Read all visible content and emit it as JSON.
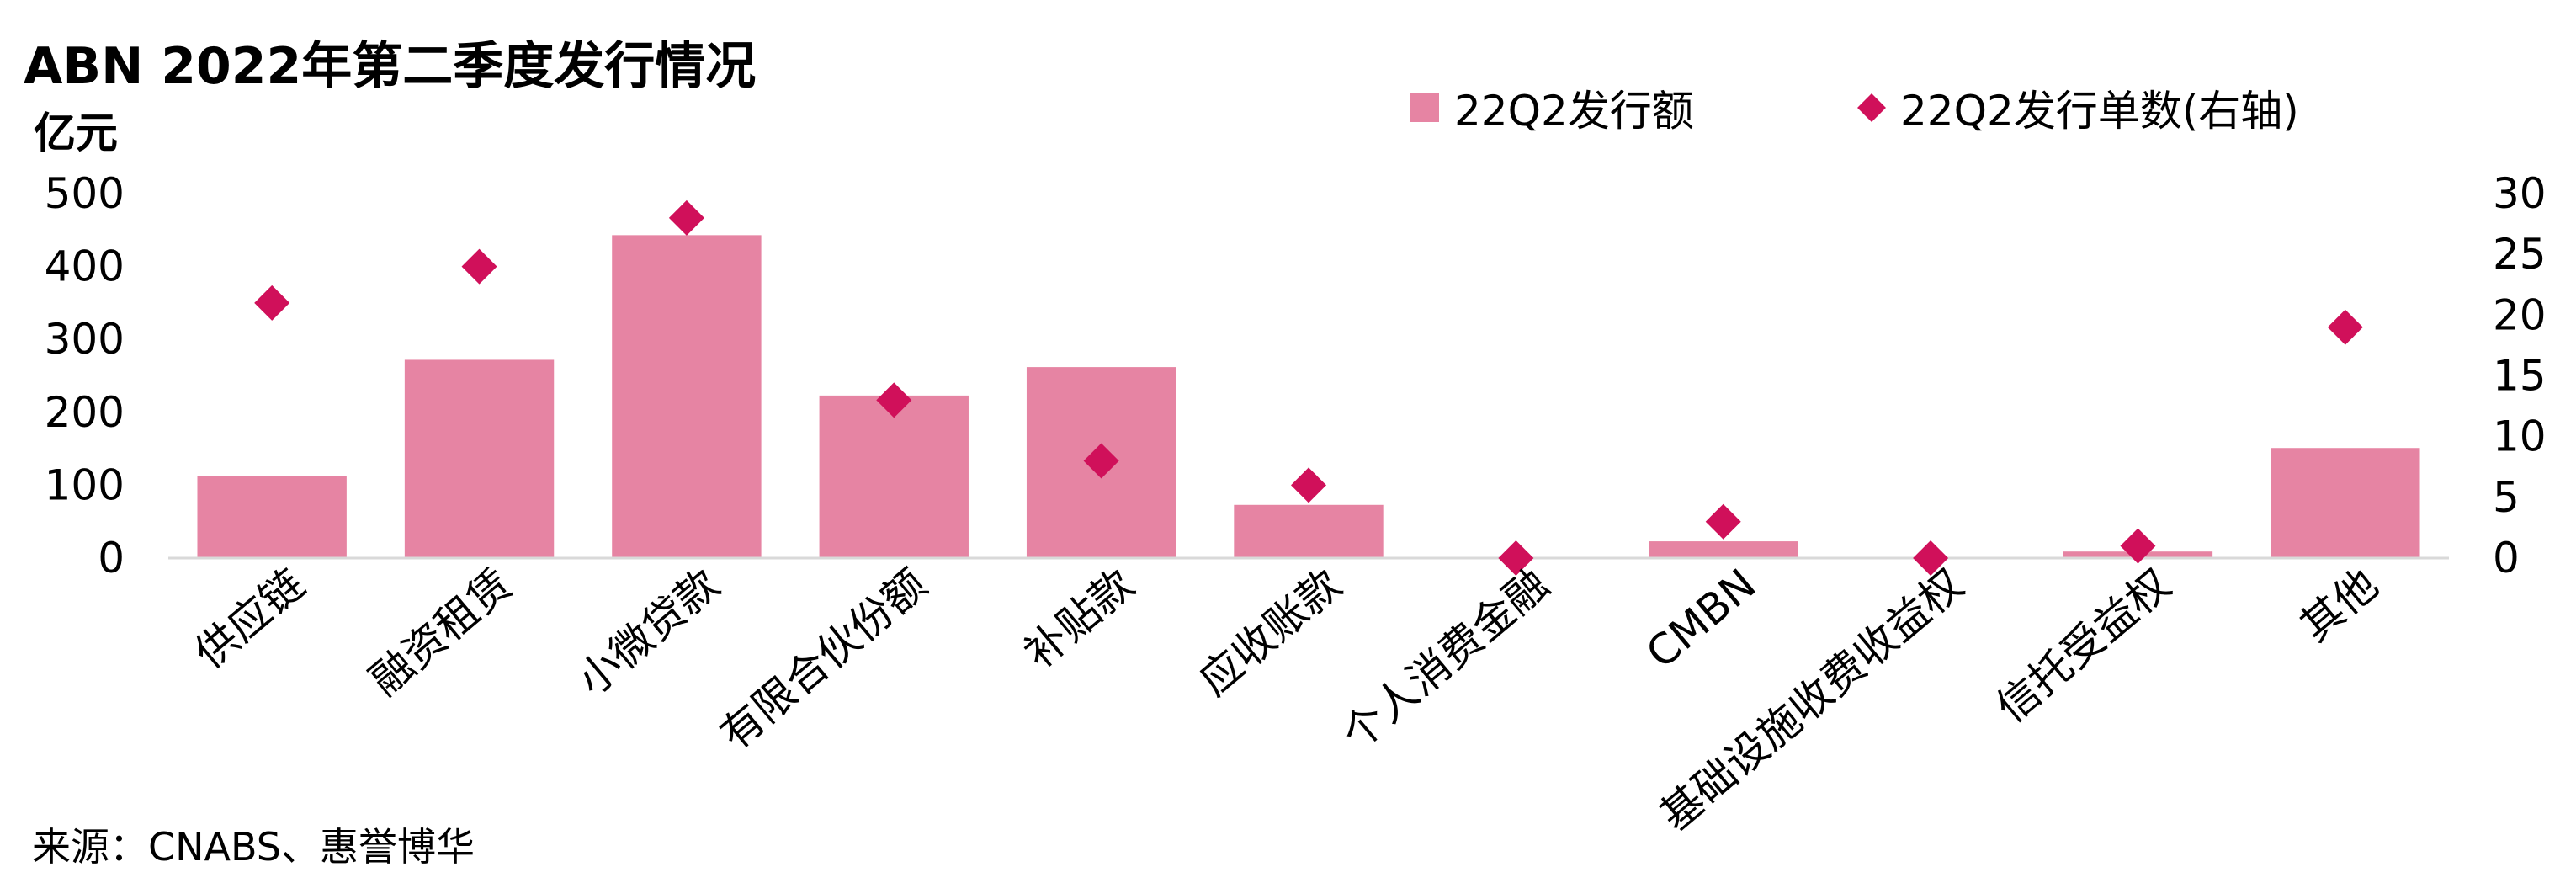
{
  "title": "ABN 2022年第二季度发行情况",
  "source": "来源：CNABS、惠誉博华",
  "colors": {
    "bar": "#e684a3",
    "marker": "#d0105a",
    "axis": "#d9d9d9"
  },
  "chart_data": {
    "type": "bar",
    "categories": [
      "供应链",
      "融资租赁",
      "小微贷款",
      "有限合伙份额",
      "补贴款",
      "应收账款",
      "个人消费金融",
      "CMBN",
      "基础设施收费收益权",
      "信托受益权",
      "其他"
    ],
    "series": [
      {
        "name": "22Q2发行额",
        "type": "bar",
        "axis": "left",
        "values": [
          112,
          272,
          443,
          223,
          262,
          73,
          0,
          23,
          0,
          9,
          151
        ]
      },
      {
        "name": "22Q2发行单数(右轴)",
        "type": "scatter",
        "marker": "diamond",
        "axis": "right",
        "values": [
          21,
          24,
          28,
          13,
          8,
          6,
          0,
          3,
          0,
          1,
          19
        ]
      }
    ],
    "ylabel": "亿元",
    "ylim": [
      0,
      500
    ],
    "yticks": [
      0,
      100,
      200,
      300,
      400,
      500
    ],
    "y2lim": [
      0,
      30
    ],
    "y2ticks": [
      0,
      5,
      10,
      15,
      20,
      25,
      30
    ],
    "legend_position": "top-right",
    "grid": false
  }
}
